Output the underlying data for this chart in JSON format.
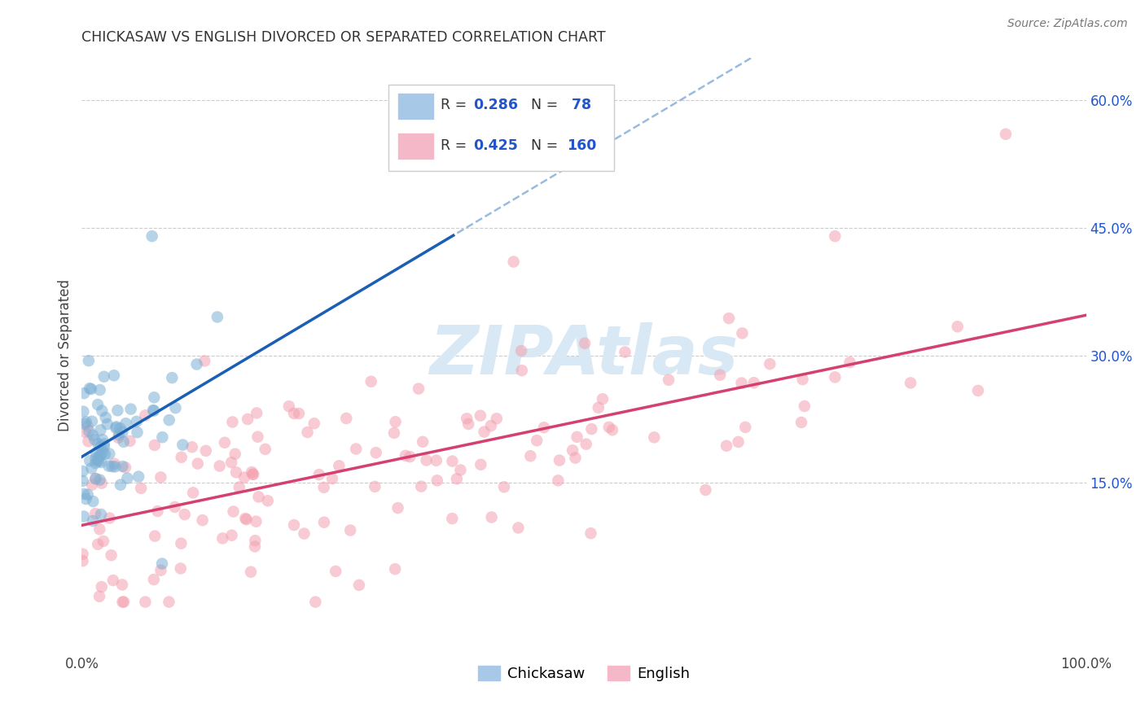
{
  "title": "CHICKASAW VS ENGLISH DIVORCED OR SEPARATED CORRELATION CHART",
  "source": "Source: ZipAtlas.com",
  "ylabel": "Divorced or Separated",
  "watermark": "ZIPAtlas",
  "xlim": [
    0,
    1.0
  ],
  "ylim": [
    -0.05,
    0.65
  ],
  "yticks": [
    0.0,
    0.15,
    0.3,
    0.45,
    0.6
  ],
  "yticklabels": [
    "",
    "15.0%",
    "30.0%",
    "45.0%",
    "60.0%"
  ],
  "xticks": [
    0.0,
    0.2,
    0.4,
    0.6,
    0.8,
    1.0
  ],
  "xticklabels": [
    "0.0%",
    "",
    "",
    "",
    "",
    "100.0%"
  ],
  "grid_color": "#cccccc",
  "bg_color": "#ffffff",
  "chickasaw_color": "#7bafd4",
  "english_color": "#f4a0b0",
  "chickasaw_line_color": "#1a5fb4",
  "english_line_color": "#d44070",
  "dash_line_color": "#99bbdd",
  "chickasaw_R": "0.286",
  "chickasaw_N": "78",
  "english_R": "0.425",
  "english_N": "160",
  "legend_color": "#2255cc",
  "legend_label_color": "#333333"
}
